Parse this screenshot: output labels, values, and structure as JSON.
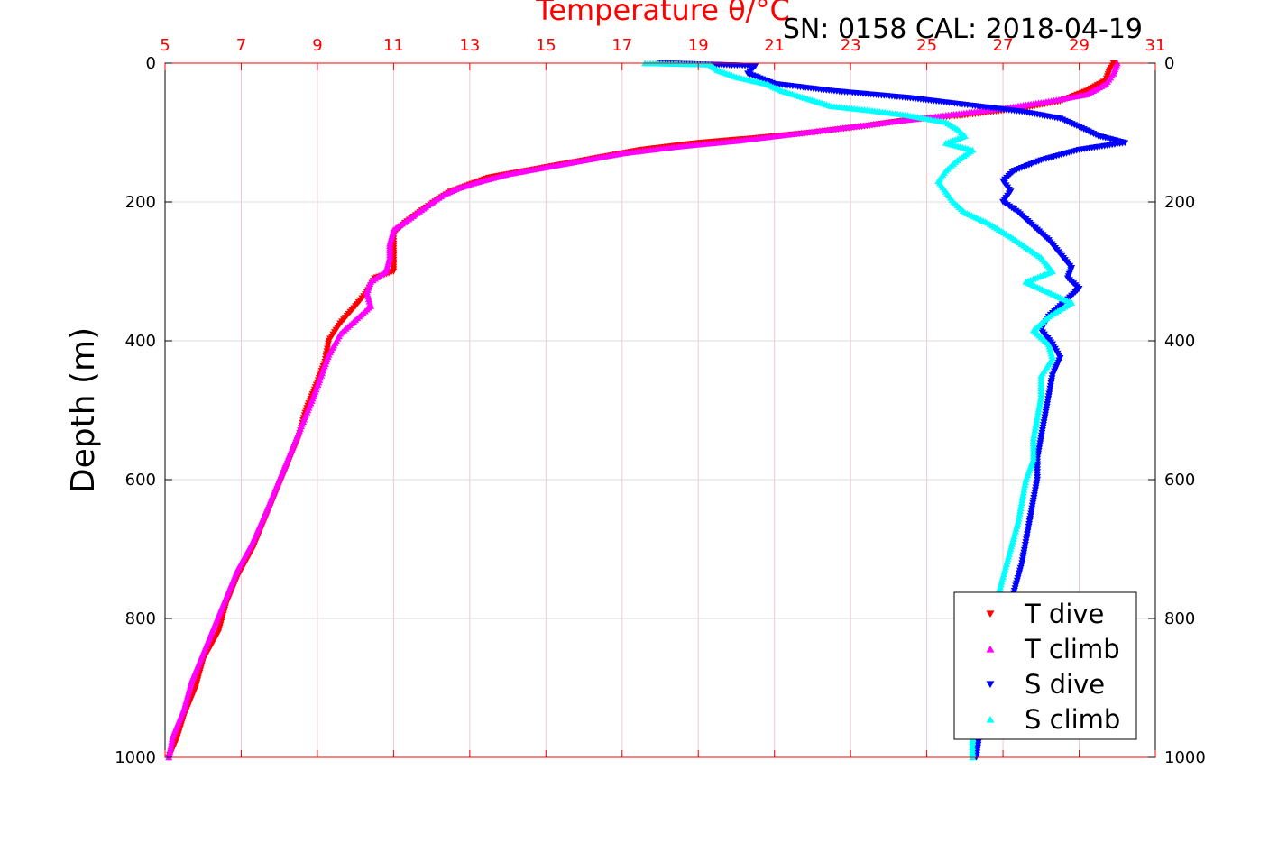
{
  "chart_data": {
    "type": "scatter",
    "title": "Temperature θ/°C",
    "subtitle": "SN: 0158  CAL: 2018-04-19",
    "ylabel": "Depth (m)",
    "xlabel": "",
    "xlim": [
      5,
      31
    ],
    "ylim": [
      0,
      1000
    ],
    "y_reversed": true,
    "grid": true,
    "legend_position": "bottom-right",
    "x_ticks": [
      "5",
      "7",
      "9",
      "11",
      "13",
      "15",
      "17",
      "19",
      "21",
      "23",
      "25",
      "27",
      "29",
      "31"
    ],
    "y_ticks": [
      "0",
      "200",
      "400",
      "600",
      "800",
      "1000"
    ],
    "colors": {
      "axis_top": "#ff0000",
      "title": "#ff0000",
      "grid_vertical": "#f3c6cf",
      "grid_horizontal": "#dddddd"
    },
    "series": [
      {
        "name": "T dive",
        "marker": "triangle-down",
        "color": "#ff0000",
        "points": [
          [
            29.9,
            0
          ],
          [
            29.8,
            10
          ],
          [
            29.7,
            25
          ],
          [
            29.2,
            40
          ],
          [
            28.5,
            55
          ],
          [
            27.5,
            65
          ],
          [
            26.0,
            75
          ],
          [
            24.5,
            82
          ],
          [
            23.5,
            90
          ],
          [
            22.0,
            100
          ],
          [
            20.5,
            108
          ],
          [
            19.0,
            115
          ],
          [
            17.5,
            125
          ],
          [
            16.5,
            135
          ],
          [
            15.5,
            145
          ],
          [
            14.5,
            155
          ],
          [
            13.5,
            165
          ],
          [
            13.0,
            175
          ],
          [
            12.5,
            185
          ],
          [
            12.2,
            195
          ],
          [
            11.8,
            210
          ],
          [
            11.3,
            230
          ],
          [
            11.0,
            245
          ],
          [
            11.0,
            260
          ],
          [
            11.0,
            280
          ],
          [
            11.0,
            300
          ],
          [
            10.5,
            310
          ],
          [
            10.3,
            330
          ],
          [
            10.0,
            350
          ],
          [
            9.6,
            375
          ],
          [
            9.3,
            400
          ],
          [
            9.2,
            430
          ],
          [
            9.0,
            460
          ],
          [
            8.7,
            500
          ],
          [
            8.5,
            540
          ],
          [
            8.2,
            580
          ],
          [
            7.9,
            620
          ],
          [
            7.6,
            660
          ],
          [
            7.3,
            700
          ],
          [
            6.9,
            740
          ],
          [
            6.6,
            780
          ],
          [
            6.4,
            820
          ],
          [
            6.0,
            860
          ],
          [
            5.8,
            900
          ],
          [
            5.5,
            940
          ],
          [
            5.3,
            975
          ],
          [
            5.1,
            1000
          ]
        ]
      },
      {
        "name": "T climb",
        "marker": "triangle-up",
        "color": "#ff00ff",
        "points": [
          [
            30.0,
            0
          ],
          [
            29.9,
            15
          ],
          [
            29.7,
            30
          ],
          [
            29.2,
            45
          ],
          [
            28.2,
            55
          ],
          [
            27.0,
            65
          ],
          [
            25.5,
            75
          ],
          [
            24.0,
            85
          ],
          [
            23.0,
            92
          ],
          [
            21.5,
            102
          ],
          [
            20.0,
            112
          ],
          [
            18.5,
            120
          ],
          [
            17.0,
            130
          ],
          [
            16.0,
            140
          ],
          [
            15.0,
            150
          ],
          [
            14.0,
            160
          ],
          [
            13.3,
            170
          ],
          [
            12.7,
            180
          ],
          [
            12.3,
            190
          ],
          [
            11.9,
            205
          ],
          [
            11.4,
            225
          ],
          [
            11.0,
            240
          ],
          [
            10.9,
            260
          ],
          [
            10.9,
            280
          ],
          [
            10.8,
            300
          ],
          [
            10.4,
            315
          ],
          [
            10.3,
            330
          ],
          [
            10.4,
            350
          ],
          [
            10.0,
            370
          ],
          [
            9.6,
            390
          ],
          [
            9.3,
            420
          ],
          [
            9.1,
            450
          ],
          [
            8.9,
            480
          ],
          [
            8.6,
            520
          ],
          [
            8.3,
            560
          ],
          [
            8.0,
            600
          ],
          [
            7.7,
            640
          ],
          [
            7.3,
            690
          ],
          [
            6.9,
            730
          ],
          [
            6.6,
            770
          ],
          [
            6.3,
            810
          ],
          [
            6.0,
            850
          ],
          [
            5.7,
            890
          ],
          [
            5.5,
            930
          ],
          [
            5.2,
            970
          ],
          [
            5.1,
            1000
          ]
        ]
      },
      {
        "name": "S dive",
        "marker": "triangle-down",
        "color": "#0000ff",
        "points": [
          [
            18.0,
            0
          ],
          [
            19.2,
            2
          ],
          [
            20.5,
            4
          ],
          [
            20.3,
            15
          ],
          [
            21.0,
            30
          ],
          [
            22.5,
            40
          ],
          [
            24.5,
            50
          ],
          [
            26.0,
            60
          ],
          [
            27.5,
            70
          ],
          [
            28.5,
            80
          ],
          [
            29.0,
            92
          ],
          [
            29.5,
            105
          ],
          [
            30.2,
            115
          ],
          [
            29.0,
            125
          ],
          [
            28.0,
            140
          ],
          [
            27.3,
            155
          ],
          [
            27.0,
            170
          ],
          [
            27.2,
            185
          ],
          [
            27.0,
            200
          ],
          [
            27.4,
            215
          ],
          [
            27.8,
            235
          ],
          [
            28.2,
            255
          ],
          [
            28.5,
            275
          ],
          [
            28.8,
            295
          ],
          [
            28.7,
            310
          ],
          [
            29.0,
            325
          ],
          [
            28.6,
            345
          ],
          [
            28.2,
            365
          ],
          [
            28.0,
            385
          ],
          [
            28.3,
            405
          ],
          [
            28.5,
            425
          ],
          [
            28.3,
            450
          ],
          [
            28.2,
            480
          ],
          [
            28.1,
            510
          ],
          [
            28.0,
            540
          ],
          [
            27.9,
            570
          ],
          [
            27.9,
            600
          ],
          [
            27.8,
            630
          ],
          [
            27.7,
            660
          ],
          [
            27.6,
            690
          ],
          [
            27.5,
            720
          ],
          [
            27.3,
            760
          ],
          [
            27.1,
            800
          ],
          [
            26.9,
            840
          ],
          [
            26.7,
            880
          ],
          [
            26.5,
            920
          ],
          [
            26.4,
            960
          ],
          [
            26.3,
            1000
          ]
        ]
      },
      {
        "name": "S climb",
        "marker": "triangle-up",
        "color": "#00ffff",
        "points": [
          [
            17.6,
            0
          ],
          [
            19.3,
            2
          ],
          [
            19.5,
            10
          ],
          [
            20.0,
            20
          ],
          [
            20.8,
            30
          ],
          [
            21.2,
            40
          ],
          [
            21.8,
            50
          ],
          [
            22.5,
            62
          ],
          [
            23.5,
            68
          ],
          [
            24.5,
            75
          ],
          [
            25.5,
            85
          ],
          [
            25.8,
            95
          ],
          [
            26.0,
            105
          ],
          [
            25.5,
            115
          ],
          [
            26.2,
            125
          ],
          [
            25.8,
            140
          ],
          [
            25.5,
            155
          ],
          [
            25.3,
            170
          ],
          [
            25.5,
            185
          ],
          [
            25.7,
            200
          ],
          [
            26.0,
            215
          ],
          [
            26.6,
            230
          ],
          [
            27.2,
            250
          ],
          [
            27.6,
            265
          ],
          [
            28.0,
            280
          ],
          [
            28.3,
            300
          ],
          [
            27.6,
            315
          ],
          [
            28.2,
            330
          ],
          [
            28.8,
            345
          ],
          [
            28.2,
            365
          ],
          [
            27.8,
            385
          ],
          [
            28.2,
            405
          ],
          [
            28.3,
            425
          ],
          [
            28.0,
            450
          ],
          [
            28.0,
            480
          ],
          [
            27.9,
            510
          ],
          [
            27.8,
            540
          ],
          [
            27.8,
            570
          ],
          [
            27.6,
            600
          ],
          [
            27.5,
            630
          ],
          [
            27.4,
            660
          ],
          [
            27.2,
            700
          ],
          [
            27.0,
            740
          ],
          [
            26.8,
            780
          ],
          [
            26.6,
            820
          ],
          [
            26.4,
            870
          ],
          [
            26.3,
            920
          ],
          [
            26.2,
            960
          ],
          [
            26.2,
            1000
          ]
        ]
      }
    ]
  }
}
